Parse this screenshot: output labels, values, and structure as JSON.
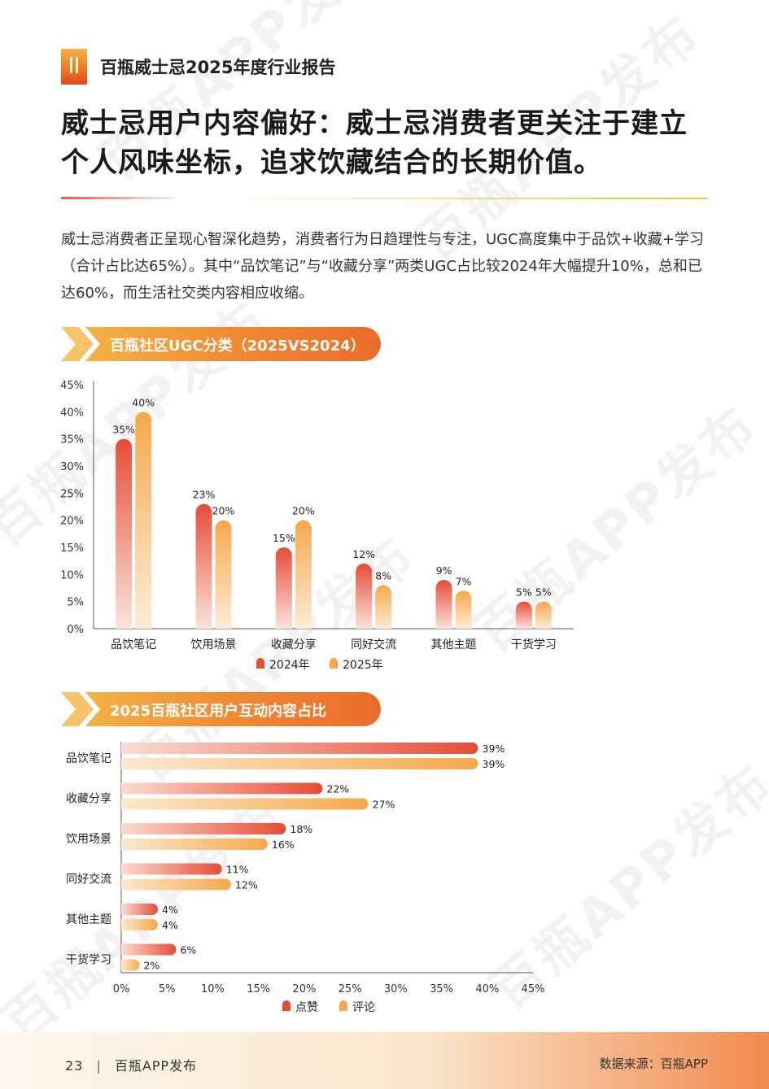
{
  "header": {
    "title": "百瓶威士忌2025年度行业报告"
  },
  "main_title": "威士忌用户内容偏好：威士忌消费者更关注于建立个人风味坐标，追求饮藏结合的长期价值。",
  "intro": "威士忌消费者正呈现心智深化趋势，消费者行为日趋理性与专注，UGC高度集中于品饮+收藏+学习（合计占比达65%）。其中“品饮笔记”与“收藏分享”两类UGC占比较2024年大幅提升10%，总和已达60%，而生活社交类内容相应收缩。",
  "watermark": "百瓶APP发布",
  "colors": {
    "red": "#e64c36",
    "orange": "#f6a84a",
    "banner": "#f08a32"
  },
  "chart_data": [
    {
      "type": "bar",
      "title": "百瓶社区UGC分类（2025VS2024）",
      "categories": [
        "品饮笔记",
        "饮用场景",
        "收藏分享",
        "同好交流",
        "其他主题",
        "干货学习"
      ],
      "series": [
        {
          "name": "2024年",
          "values": [
            35,
            23,
            15,
            12,
            9,
            5
          ],
          "labels": [
            "35%",
            "23%",
            "15%",
            "12%",
            "9%",
            "5%"
          ]
        },
        {
          "name": "2025年",
          "values": [
            40,
            20,
            20,
            8,
            7,
            5
          ],
          "labels": [
            "40%",
            "20%",
            "20%",
            "8%",
            "7%",
            "5%"
          ]
        }
      ],
      "yticks": [
        "0%",
        "5%",
        "10%",
        "15%",
        "20%",
        "25%",
        "30%",
        "35%",
        "40%",
        "45%"
      ],
      "ylim": [
        0,
        45
      ],
      "legend": "bottom"
    },
    {
      "type": "bar",
      "orientation": "horizontal",
      "title": "2025百瓶社区用户互动内容占比",
      "categories": [
        "品饮笔记",
        "收藏分享",
        "饮用场景",
        "同好交流",
        "其他主题",
        "干货学习"
      ],
      "series": [
        {
          "name": "点赞",
          "values": [
            39,
            22,
            18,
            11,
            4,
            6
          ],
          "labels": [
            "39%",
            "22%",
            "18%",
            "11%",
            "4%",
            "6%"
          ]
        },
        {
          "name": "评论",
          "values": [
            39,
            27,
            16,
            12,
            4,
            2
          ],
          "labels": [
            "39%",
            "27%",
            "16%",
            "12%",
            "4%",
            "2%"
          ]
        }
      ],
      "xticks": [
        "0%",
        "5%",
        "10%",
        "15%",
        "20%",
        "25%",
        "30%",
        "35%",
        "40%",
        "45%"
      ],
      "xlim": [
        0,
        45
      ],
      "legend": "bottom"
    }
  ],
  "footer": {
    "page_number": "23",
    "publisher": "百瓶APP发布",
    "source": "数据来源：百瓶APP"
  }
}
